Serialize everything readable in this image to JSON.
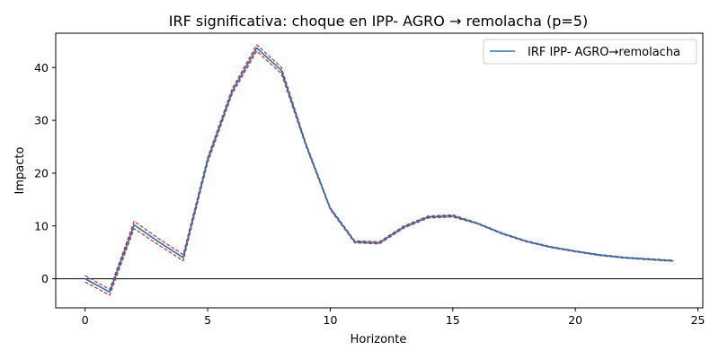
{
  "chart_data": {
    "type": "line",
    "title": "IRF significativa: choque en IPP- AGRO → remolacha (p=5)",
    "xlabel": "Horizonte",
    "ylabel": "Impacto",
    "xlim": [
      -1.2,
      25.2
    ],
    "ylim": [
      -5.5,
      46.5
    ],
    "xticks": [
      0,
      5,
      10,
      15,
      20,
      25
    ],
    "yticks": [
      0,
      10,
      20,
      30,
      40
    ],
    "zero_line": true,
    "grid": false,
    "legend_position": "top-right",
    "x": [
      0,
      1,
      2,
      3,
      4,
      5,
      6,
      7,
      8,
      9,
      10,
      11,
      12,
      13,
      14,
      15,
      16,
      17,
      18,
      19,
      20,
      21,
      22,
      23,
      24
    ],
    "series": [
      {
        "name": "IRF IPP- AGRO→remolacha",
        "color": "#1f77b4",
        "style": "solid",
        "values": [
          0.0,
          -2.5,
          10.2,
          7.0,
          4.0,
          22.5,
          35.5,
          43.7,
          39.5,
          25.5,
          13.3,
          7.0,
          6.8,
          9.8,
          11.7,
          11.9,
          10.5,
          8.6,
          7.1,
          6.0,
          5.2,
          4.5,
          4.0,
          3.7,
          3.4
        ]
      },
      {
        "name": "",
        "color": "#d62728",
        "style": "dashed",
        "values": [
          0.6,
          -2.0,
          10.9,
          7.6,
          4.6,
          23.0,
          36.0,
          44.3,
          40.1,
          25.8,
          13.5,
          7.2,
          7.0,
          10.0,
          11.9,
          12.1,
          10.6,
          8.7,
          7.2,
          6.1,
          5.3,
          4.6,
          4.1,
          3.8,
          3.5
        ]
      },
      {
        "name": "",
        "color": "#d62728",
        "style": "dashed",
        "values": [
          -0.6,
          -3.1,
          9.5,
          6.4,
          3.4,
          22.0,
          35.0,
          43.1,
          38.9,
          25.2,
          13.1,
          6.8,
          6.6,
          9.6,
          11.5,
          11.7,
          10.4,
          8.5,
          7.0,
          5.9,
          5.1,
          4.4,
          3.9,
          3.6,
          3.3
        ]
      }
    ]
  }
}
